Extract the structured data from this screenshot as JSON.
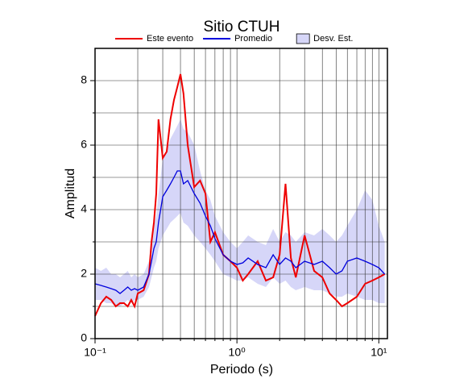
{
  "chart_data": {
    "type": "line",
    "title": "Sitio CTUH",
    "xlabel": "Periodo (s)",
    "ylabel": "Amplitud",
    "xscale": "log",
    "grid": true,
    "xlim": [
      0.1,
      11.5
    ],
    "ylim": [
      0,
      9
    ],
    "xticks": [
      {
        "value": 0.1,
        "label": "10⁻¹"
      },
      {
        "value": 1,
        "label": "10⁰"
      },
      {
        "value": 10,
        "label": "10¹"
      }
    ],
    "xminorticks": [
      0.2,
      0.3,
      0.4,
      0.5,
      0.6,
      0.7,
      0.8,
      0.9,
      2,
      3,
      4,
      5,
      6,
      7,
      8,
      9
    ],
    "yticks": [
      0,
      2,
      4,
      6,
      8
    ],
    "yminorticks": [
      1,
      3,
      5,
      7
    ],
    "x": [
      0.1,
      0.11,
      0.12,
      0.13,
      0.14,
      0.15,
      0.16,
      0.17,
      0.18,
      0.19,
      0.2,
      0.22,
      0.24,
      0.25,
      0.26,
      0.27,
      0.28,
      0.29,
      0.3,
      0.32,
      0.34,
      0.36,
      0.38,
      0.4,
      0.42,
      0.45,
      0.5,
      0.55,
      0.6,
      0.65,
      0.7,
      0.8,
      0.9,
      1.0,
      1.1,
      1.2,
      1.4,
      1.6,
      1.8,
      2.0,
      2.2,
      2.4,
      2.6,
      3.0,
      3.5,
      4.0,
      4.5,
      5.0,
      5.5,
      6.0,
      7.0,
      8.0,
      9.0,
      10.0,
      11.0
    ],
    "series": [
      {
        "name": "Este evento",
        "color": "#ee0000",
        "values": [
          0.7,
          1.1,
          1.3,
          1.2,
          1.0,
          1.1,
          1.1,
          1.0,
          1.2,
          1.0,
          1.4,
          1.5,
          2.0,
          3.0,
          3.6,
          4.5,
          6.8,
          6.2,
          5.6,
          5.8,
          6.8,
          7.4,
          7.8,
          8.2,
          7.6,
          6.0,
          4.7,
          4.9,
          4.5,
          3.0,
          3.3,
          2.6,
          2.4,
          2.2,
          1.8,
          2.0,
          2.4,
          1.8,
          1.9,
          2.6,
          4.8,
          2.5,
          1.9,
          3.2,
          2.1,
          1.9,
          1.4,
          1.2,
          1.0,
          1.1,
          1.3,
          1.7,
          1.8,
          1.9,
          2.0
        ]
      },
      {
        "name": "Promedio",
        "color": "#0000dd",
        "values": [
          1.7,
          1.65,
          1.6,
          1.55,
          1.5,
          1.4,
          1.5,
          1.6,
          1.5,
          1.55,
          1.5,
          1.6,
          2.0,
          2.4,
          2.8,
          3.0,
          3.6,
          4.0,
          4.4,
          4.6,
          4.8,
          5.0,
          5.2,
          5.2,
          4.8,
          4.9,
          4.5,
          4.2,
          3.8,
          3.5,
          3.1,
          2.6,
          2.4,
          2.3,
          2.35,
          2.5,
          2.3,
          2.2,
          2.6,
          2.3,
          2.5,
          2.4,
          2.2,
          2.4,
          2.3,
          2.4,
          2.2,
          2.0,
          2.1,
          2.4,
          2.5,
          2.4,
          2.3,
          2.2,
          2.0
        ]
      },
      {
        "name": "Desv. Est.",
        "color": "#d6d6f8",
        "lower": [
          1.2,
          1.2,
          1.1,
          1.1,
          1.0,
          1.0,
          1.1,
          1.2,
          1.1,
          1.2,
          1.2,
          1.3,
          1.6,
          1.9,
          2.2,
          2.4,
          2.8,
          3.0,
          3.2,
          3.4,
          3.6,
          3.7,
          3.8,
          3.9,
          3.6,
          3.5,
          3.2,
          3.0,
          2.8,
          2.6,
          2.4,
          2.0,
          1.9,
          1.8,
          1.8,
          1.9,
          1.7,
          1.6,
          1.9,
          1.7,
          1.8,
          1.6,
          1.5,
          1.6,
          1.5,
          1.5,
          1.4,
          1.3,
          1.3,
          1.4,
          1.3,
          1.2,
          1.2,
          1.1,
          1.1
        ],
        "upper": [
          2.2,
          2.1,
          2.2,
          2.0,
          2.0,
          1.9,
          2.0,
          2.1,
          1.9,
          2.0,
          1.9,
          2.0,
          2.4,
          3.0,
          3.5,
          3.8,
          4.5,
          5.0,
          5.6,
          5.8,
          6.2,
          6.4,
          6.6,
          6.8,
          6.5,
          6.4,
          6.0,
          5.2,
          4.6,
          4.3,
          3.8,
          3.3,
          3.0,
          2.8,
          3.0,
          3.2,
          3.0,
          2.9,
          3.4,
          3.0,
          3.3,
          3.2,
          3.0,
          3.3,
          3.2,
          3.4,
          3.2,
          3.0,
          3.2,
          3.5,
          4.0,
          4.6,
          4.3,
          3.5,
          3.0
        ]
      }
    ]
  }
}
